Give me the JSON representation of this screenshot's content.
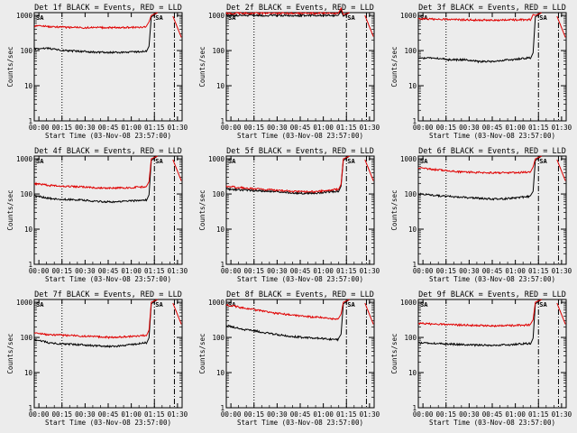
{
  "page": {
    "background": "#ececec"
  },
  "colors": {
    "events": "#000000",
    "lld": "#e00000",
    "axis": "#000000"
  },
  "y_axis": {
    "label": "Counts/sec",
    "scale": "log",
    "ticks": [
      "1",
      "10",
      "100",
      "1000"
    ]
  },
  "x_axis": {
    "label": "Start Time (03-Nov-08 23:57:00)",
    "ticks": [
      "00:00",
      "00:15",
      "00:30",
      "00:45",
      "01:00",
      "01:15",
      "01:30"
    ]
  },
  "chart_data": [
    {
      "type": "line",
      "title": "Det 1f BLACK = Events, RED = LLD",
      "yscale": "log",
      "ylim": [
        1,
        1200
      ],
      "xlabel": "Start Time (03-Nov-08 23:57:00)",
      "ylabel": "Counts/sec",
      "series": [
        {
          "name": "Events",
          "color": "#000000",
          "x_min": [
            0,
            10,
            20,
            30,
            40,
            50,
            60,
            66,
            72
          ],
          "values": [
            110,
            115,
            100,
            95,
            90,
            88,
            90,
            92,
            95
          ]
        },
        {
          "name": "LLD",
          "color": "#e00000",
          "x_min": [
            0,
            10,
            20,
            30,
            40,
            50,
            60,
            66,
            72
          ],
          "values": [
            500,
            480,
            460,
            450,
            450,
            450,
            455,
            460,
            470
          ]
        }
      ],
      "markers": {
        "saa": "SA",
        "post_value": 950
      }
    },
    {
      "type": "line",
      "title": "Det 2f BLACK = Events, RED = LLD",
      "yscale": "log",
      "ylim": [
        1,
        1200
      ],
      "xlabel": "Start Time (03-Nov-08 23:57:00)",
      "ylabel": "Counts/sec",
      "series": [
        {
          "name": "Events",
          "color": "#000000",
          "x_min": [
            0,
            10,
            20,
            30,
            40,
            50,
            60,
            66,
            72
          ],
          "values": [
            1000,
            1000,
            1000,
            1000,
            1000,
            1000,
            1000,
            1000,
            1000
          ]
        },
        {
          "name": "LLD",
          "color": "#e00000",
          "x_min": [
            0,
            10,
            20,
            30,
            40,
            50,
            60,
            66,
            72
          ],
          "values": [
            1150,
            1150,
            1150,
            1150,
            1150,
            1150,
            1150,
            1150,
            1150
          ]
        }
      ],
      "markers": {
        "saa": "SA",
        "post_value": 1000
      }
    },
    {
      "type": "line",
      "title": "Det 3f BLACK = Events, RED = LLD",
      "yscale": "log",
      "ylim": [
        1,
        1200
      ],
      "xlabel": "Start Time (03-Nov-08 23:57:00)",
      "ylabel": "Counts/sec",
      "series": [
        {
          "name": "Events",
          "color": "#000000",
          "x_min": [
            0,
            10,
            20,
            30,
            40,
            50,
            60,
            66,
            72
          ],
          "values": [
            60,
            62,
            55,
            55,
            48,
            50,
            55,
            58,
            62
          ]
        },
        {
          "name": "LLD",
          "color": "#e00000",
          "x_min": [
            0,
            10,
            20,
            30,
            40,
            50,
            60,
            66,
            72
          ],
          "values": [
            800,
            780,
            760,
            750,
            740,
            740,
            745,
            750,
            760
          ]
        }
      ],
      "markers": {
        "saa": "SA",
        "post_value": 950
      }
    },
    {
      "type": "line",
      "title": "Det 4f BLACK = Events, RED = LLD",
      "yscale": "log",
      "ylim": [
        1,
        1200
      ],
      "xlabel": "Start Time (03-Nov-08 23:57:00)",
      "ylabel": "Counts/sec",
      "series": [
        {
          "name": "Events",
          "color": "#000000",
          "x_min": [
            0,
            10,
            20,
            30,
            40,
            50,
            60,
            66,
            72
          ],
          "values": [
            90,
            75,
            70,
            68,
            62,
            60,
            62,
            65,
            68
          ]
        },
        {
          "name": "LLD",
          "color": "#e00000",
          "x_min": [
            0,
            10,
            20,
            30,
            40,
            50,
            60,
            66,
            72
          ],
          "values": [
            200,
            175,
            165,
            160,
            150,
            148,
            150,
            155,
            160
          ]
        }
      ],
      "markers": {
        "saa": "SA",
        "post_value": 950
      }
    },
    {
      "type": "line",
      "title": "Det 5f BLACK = Events, RED = LLD",
      "yscale": "log",
      "ylim": [
        1,
        1200
      ],
      "xlabel": "Start Time (03-Nov-08 23:57:00)",
      "ylabel": "Counts/sec",
      "series": [
        {
          "name": "Events",
          "color": "#000000",
          "x_min": [
            0,
            10,
            20,
            30,
            40,
            50,
            60,
            66,
            72
          ],
          "values": [
            140,
            130,
            125,
            118,
            110,
            105,
            108,
            115,
            120
          ]
        },
        {
          "name": "LLD",
          "color": "#e00000",
          "x_min": [
            0,
            10,
            20,
            30,
            40,
            50,
            60,
            66,
            72
          ],
          "values": [
            165,
            150,
            140,
            130,
            122,
            115,
            118,
            128,
            135
          ]
        }
      ],
      "markers": {
        "saa": "SA",
        "post_value": 950
      }
    },
    {
      "type": "line",
      "title": "Det 6f BLACK = Events, RED = LLD",
      "yscale": "log",
      "ylim": [
        1,
        1200
      ],
      "xlabel": "Start Time (03-Nov-08 23:57:00)",
      "ylabel": "Counts/sec",
      "series": [
        {
          "name": "Events",
          "color": "#000000",
          "x_min": [
            0,
            10,
            20,
            30,
            40,
            50,
            60,
            66,
            72
          ],
          "values": [
            100,
            92,
            85,
            80,
            75,
            72,
            75,
            80,
            85
          ]
        },
        {
          "name": "LLD",
          "color": "#e00000",
          "x_min": [
            0,
            10,
            20,
            30,
            40,
            50,
            60,
            66,
            72
          ],
          "values": [
            550,
            500,
            450,
            420,
            410,
            400,
            405,
            410,
            420
          ]
        }
      ],
      "markers": {
        "saa": "SA",
        "post_value": 950
      }
    },
    {
      "type": "line",
      "title": "Det 7f BLACK = Events, RED = LLD",
      "yscale": "log",
      "ylim": [
        1,
        1200
      ],
      "xlabel": "Start Time (03-Nov-08 23:57:00)",
      "ylabel": "Counts/sec",
      "series": [
        {
          "name": "Events",
          "color": "#000000",
          "x_min": [
            0,
            10,
            20,
            30,
            40,
            50,
            60,
            66,
            72
          ],
          "values": [
            85,
            70,
            65,
            62,
            58,
            55,
            60,
            65,
            70
          ]
        },
        {
          "name": "LLD",
          "color": "#e00000",
          "x_min": [
            0,
            10,
            20,
            30,
            40,
            50,
            60,
            66,
            72
          ],
          "values": [
            130,
            120,
            115,
            110,
            105,
            100,
            105,
            110,
            115
          ]
        }
      ],
      "markers": {
        "saa": "SA",
        "post_value": 950
      }
    },
    {
      "type": "line",
      "title": "Det 8f BLACK = Events, RED = LLD",
      "yscale": "log",
      "ylim": [
        1,
        1200
      ],
      "xlabel": "Start Time (03-Nov-08 23:57:00)",
      "ylabel": "Counts/sec",
      "series": [
        {
          "name": "Events",
          "color": "#000000",
          "x_min": [
            0,
            10,
            20,
            30,
            40,
            50,
            60,
            66,
            72
          ],
          "values": [
            220,
            170,
            150,
            125,
            110,
            100,
            95,
            90,
            88
          ]
        },
        {
          "name": "LLD",
          "color": "#e00000",
          "x_min": [
            0,
            10,
            20,
            30,
            40,
            50,
            60,
            66,
            72
          ],
          "values": [
            850,
            700,
            600,
            500,
            450,
            400,
            370,
            350,
            330
          ]
        }
      ],
      "markers": {
        "saa": "SA",
        "post_value": 950
      }
    },
    {
      "type": "line",
      "title": "Det 9f BLACK = Events, RED = LLD",
      "yscale": "log",
      "ylim": [
        1,
        1200
      ],
      "xlabel": "Start Time (03-Nov-08 23:57:00)",
      "ylabel": "Counts/sec",
      "series": [
        {
          "name": "Events",
          "color": "#000000",
          "x_min": [
            0,
            10,
            20,
            30,
            40,
            50,
            60,
            66,
            72
          ],
          "values": [
            70,
            68,
            65,
            62,
            60,
            60,
            62,
            65,
            68
          ]
        },
        {
          "name": "LLD",
          "color": "#e00000",
          "x_min": [
            0,
            10,
            20,
            30,
            40,
            50,
            60,
            66,
            72
          ],
          "values": [
            250,
            240,
            230,
            225,
            220,
            215,
            218,
            222,
            228
          ]
        }
      ],
      "markers": {
        "saa": "SA",
        "post_value": 950
      }
    }
  ]
}
